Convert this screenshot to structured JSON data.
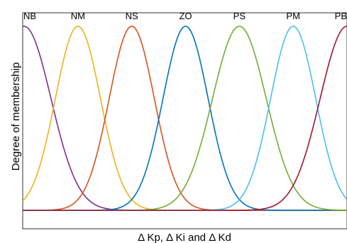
{
  "chart_data": {
    "type": "line",
    "title": "",
    "xlabel": "Δ Kp, Δ Ki and Δ Kd",
    "ylabel": "Degree of membership",
    "xlim": [
      0,
      6
    ],
    "ylim": [
      0,
      1
    ],
    "grid": false,
    "legend": "none",
    "series": [
      {
        "name": "NB",
        "center": 0,
        "sigma": 0.5,
        "color": "#7e2f8e"
      },
      {
        "name": "NM",
        "center": 1,
        "sigma": 0.42,
        "color": "#edb120"
      },
      {
        "name": "NS",
        "center": 2,
        "sigma": 0.42,
        "color": "#d95319"
      },
      {
        "name": "ZO",
        "center": 3,
        "sigma": 0.42,
        "color": "#0072bd"
      },
      {
        "name": "PS",
        "center": 4,
        "sigma": 0.5,
        "color": "#77ac30"
      },
      {
        "name": "PM",
        "center": 5,
        "sigma": 0.42,
        "color": "#4dbeee"
      },
      {
        "name": "PB",
        "center": 6,
        "sigma": 0.5,
        "color": "#a2142f"
      }
    ]
  }
}
